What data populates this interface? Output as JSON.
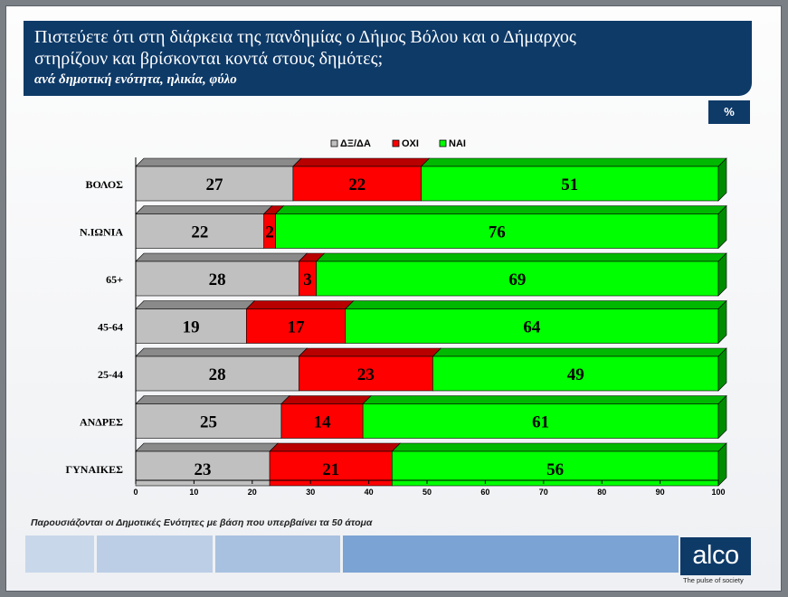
{
  "header": {
    "title_line1": "Πιστεύετε ότι στη διάρκεια της πανδημίας ο Δήμος Βόλου και ο Δήμαρχος",
    "title_line2": "στηρίζουν και βρίσκονται κοντά στους δημότες;",
    "subtitle": "ανά δημοτική ενότητα, ηλικία, φύλο"
  },
  "unit_badge": "%",
  "footnote": "Παρουσιάζονται οι Δημοτικές Ενότητες με βάση που υπερβαίνει τα 50 άτομα",
  "logo": {
    "text": "alco",
    "tagline": "The pulse of society"
  },
  "colors": {
    "dk": "#c0c0c0",
    "no": "#ff0000",
    "yes": "#00ff00",
    "navy": "#0e3a68"
  },
  "chart_data": {
    "type": "bar",
    "orientation": "horizontal",
    "stacked": true,
    "categories": [
      "ΒΟΛΟΣ",
      "Ν.ΙΩΝΙΑ",
      "65+",
      "45-64",
      "25-44",
      "ΑΝΔΡΕΣ",
      "ΓΥΝΑΙΚΕΣ"
    ],
    "series": [
      {
        "name": "ΔΞ/ΔΑ",
        "color": "#c0c0c0",
        "values": [
          27,
          22,
          28,
          19,
          28,
          25,
          23
        ]
      },
      {
        "name": "ΟΧΙ",
        "color": "#ff0000",
        "values": [
          22,
          2,
          3,
          17,
          23,
          14,
          21
        ]
      },
      {
        "name": "ΝΑΙ",
        "color": "#00ff00",
        "values": [
          51,
          76,
          69,
          64,
          49,
          61,
          56
        ]
      }
    ],
    "xlim": [
      0,
      100
    ],
    "xticks": [
      0,
      10,
      20,
      30,
      40,
      50,
      60,
      70,
      80,
      90,
      100
    ],
    "legend": "top-center",
    "grid": false
  }
}
